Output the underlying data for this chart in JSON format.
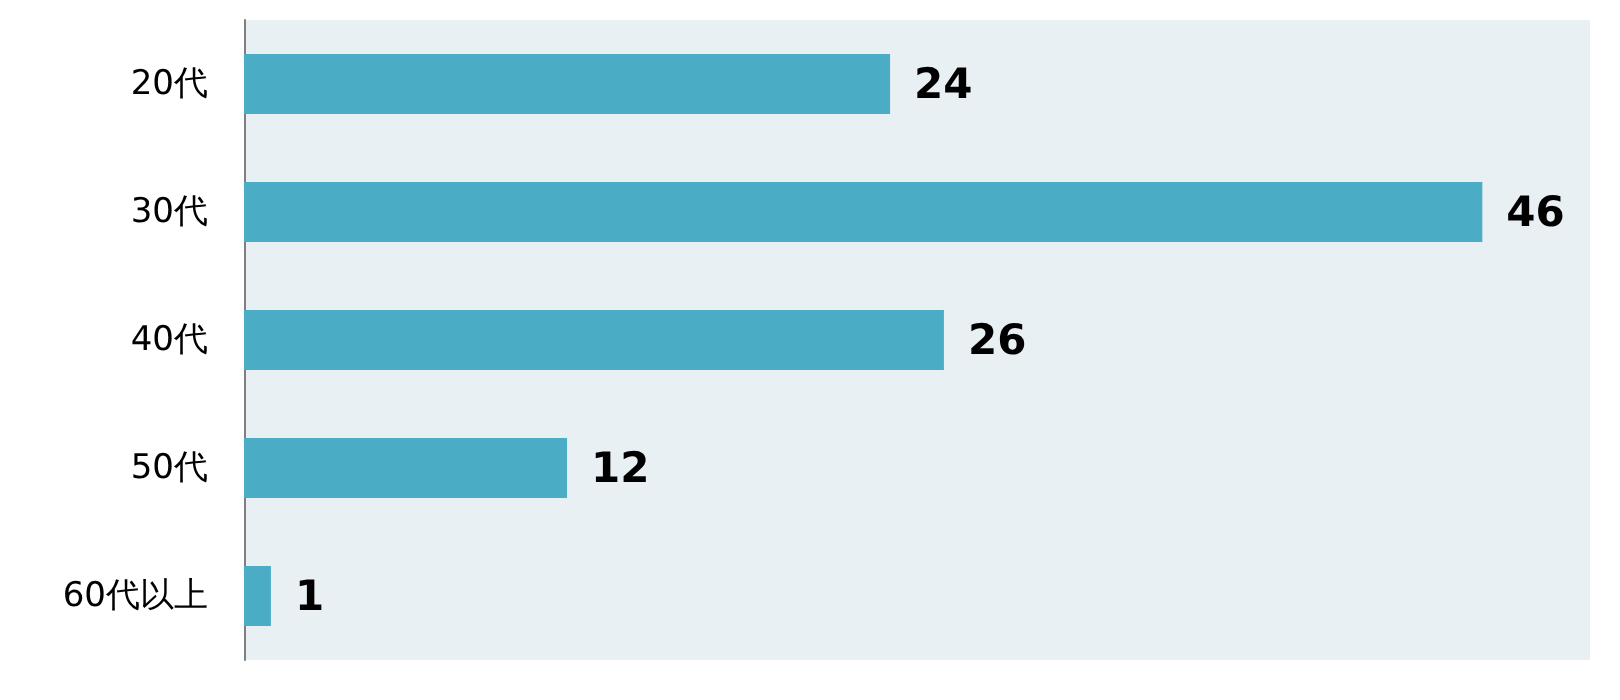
{
  "chart_data": {
    "type": "bar",
    "orientation": "horizontal",
    "categories": [
      "20代",
      "30代",
      "40代",
      "50代",
      "60代以上"
    ],
    "values": [
      24,
      46,
      26,
      12,
      1
    ],
    "color": "#4bacc6",
    "xlim": [
      0,
      50
    ],
    "data_labels": true,
    "tick_labels": "y",
    "grid": false
  }
}
